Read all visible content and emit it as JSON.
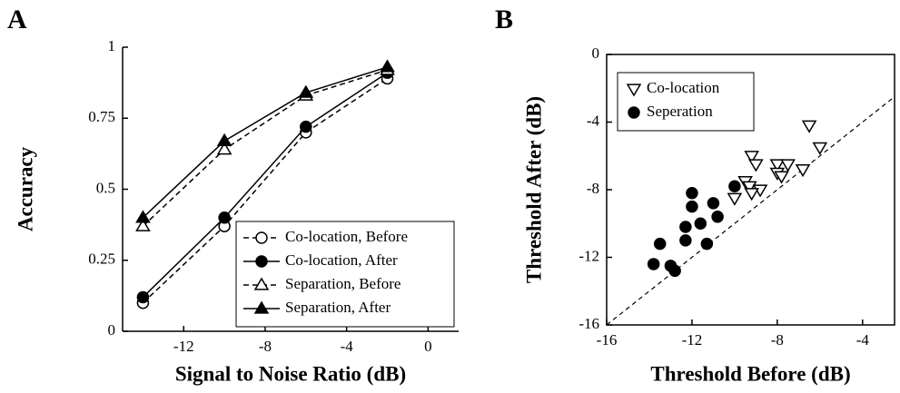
{
  "chart_data": [
    {
      "type": "line",
      "label": "A",
      "xlabel": "Signal to Noise Ratio (dB)",
      "ylabel": "Accuracy",
      "x": [
        -14,
        -10,
        -6,
        -2
      ],
      "xlim": [
        -15,
        1.5
      ],
      "xticks": [
        -12,
        -8,
        -4,
        0
      ],
      "ylim": [
        0,
        1
      ],
      "yticks": [
        0,
        0.25,
        0.5,
        0.75,
        1
      ],
      "legend": "lower right",
      "box": false,
      "series": [
        {
          "name": "Co-location, Before",
          "color": "#000000",
          "marker": "circle-open",
          "dash": true,
          "values": [
            0.1,
            0.37,
            0.7,
            0.89
          ]
        },
        {
          "name": "Co-location, After",
          "color": "#000000",
          "marker": "circle-filled",
          "dash": false,
          "values": [
            0.12,
            0.4,
            0.72,
            0.91
          ]
        },
        {
          "name": "Separation, Before",
          "color": "#000000",
          "marker": "triangle-open",
          "dash": true,
          "values": [
            0.37,
            0.64,
            0.83,
            0.92
          ]
        },
        {
          "name": "Separation, After",
          "color": "#000000",
          "marker": "triangle-filled",
          "dash": false,
          "values": [
            0.4,
            0.67,
            0.84,
            0.93
          ]
        }
      ]
    },
    {
      "type": "scatter",
      "label": "B",
      "xlabel": "Threshold Before (dB)",
      "ylabel": "Threshold After (dB)",
      "xlim": [
        -16,
        -2.5
      ],
      "xticks": [
        -16,
        -12,
        -8,
        -4
      ],
      "ylim": [
        -16,
        0
      ],
      "yticks": [
        -16,
        -12,
        -8,
        -4,
        0
      ],
      "legend": "upper left",
      "box": true,
      "diagonal": true,
      "series": [
        {
          "name": "Co-location",
          "color": "#000000",
          "marker": "triangle-down-open",
          "x": [
            -6.5,
            -6,
            -9.2,
            -9,
            -8,
            -7.5,
            -6.8,
            -8,
            -7.8,
            -9.5,
            -9.3,
            -8.8,
            -9.2,
            -10
          ],
          "values": [
            -4.2,
            -5.5,
            -6,
            -6.5,
            -6.5,
            -6.5,
            -6.8,
            -7,
            -7.2,
            -7.5,
            -7.8,
            -8,
            -8.2,
            -8.5
          ]
        },
        {
          "name": "Seperation",
          "color": "#000000",
          "marker": "circle-filled",
          "x": [
            -10,
            -12,
            -11,
            -12,
            -10.8,
            -11.6,
            -12.3,
            -12.3,
            -11.3,
            -13.5,
            -13.8,
            -13,
            -12.8
          ],
          "values": [
            -7.8,
            -8.2,
            -8.8,
            -9,
            -9.6,
            -10,
            -10.2,
            -11,
            -11.2,
            -11.2,
            -12.4,
            -12.5,
            -12.8
          ]
        }
      ]
    }
  ]
}
